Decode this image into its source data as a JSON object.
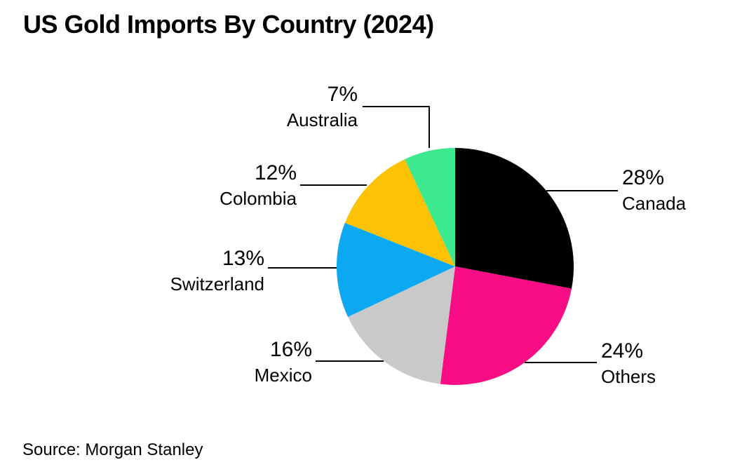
{
  "page": {
    "title": "US Gold Imports By Country (2024)",
    "source": "Source: Morgan Stanley"
  },
  "chart_data": {
    "type": "pie",
    "title": "US Gold Imports By Country (2024)",
    "source": "Source: Morgan Stanley",
    "units": "percent",
    "start_angle": "top",
    "direction": "clockwise",
    "legend": "none",
    "slices": [
      {
        "id": "canada",
        "label": "Canada",
        "value": 28,
        "pct_label": "28%",
        "color": "#000000",
        "label_side": "right"
      },
      {
        "id": "others",
        "label": "Others",
        "value": 24,
        "pct_label": "24%",
        "color": "#F90D85",
        "label_side": "right"
      },
      {
        "id": "mexico",
        "label": "Mexico",
        "value": 16,
        "pct_label": "16%",
        "color": "#C9C9C9",
        "label_side": "left"
      },
      {
        "id": "switzerland",
        "label": "Switzerland",
        "value": 13,
        "pct_label": "13%",
        "color": "#0CA8F2",
        "label_side": "left"
      },
      {
        "id": "colombia",
        "label": "Colombia",
        "value": 12,
        "pct_label": "12%",
        "color": "#FDC204",
        "label_side": "left"
      },
      {
        "id": "australia",
        "label": "Australia",
        "value": 7,
        "pct_label": "7%",
        "color": "#3CE98F",
        "label_side": "left"
      }
    ],
    "leader_line_color": "#000000"
  }
}
